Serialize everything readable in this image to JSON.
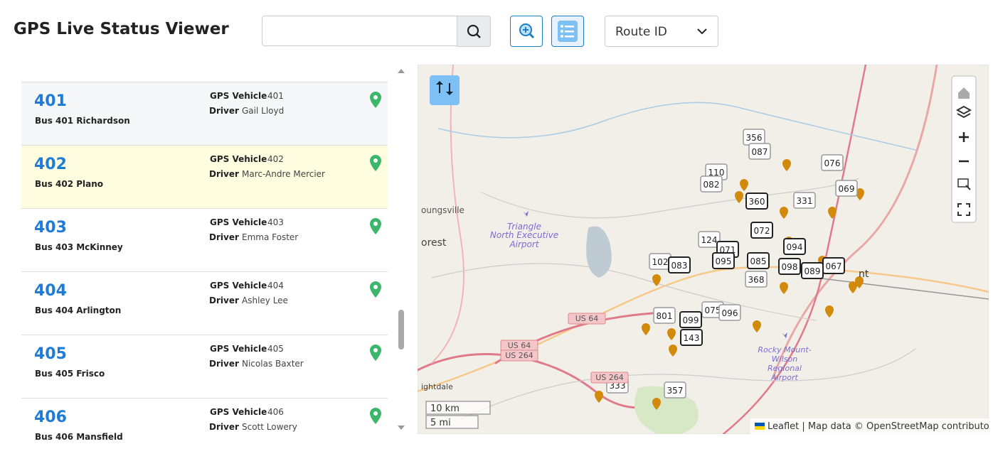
{
  "header": {
    "title": "GPS Live Status Viewer",
    "dropdown": "Route ID"
  },
  "list": {
    "items": [
      {
        "route": "401",
        "name": "Bus 401 Richardson",
        "gps_label": "GPS Vehicle",
        "gps": "401",
        "driver_label": "Driver",
        "driver": "Gail Lloyd"
      },
      {
        "route": "402",
        "name": "Bus 402 Plano",
        "gps_label": "GPS Vehicle",
        "gps": "402",
        "driver_label": "Driver",
        "driver": "Marc-Andre Mercier"
      },
      {
        "route": "403",
        "name": "Bus 403 McKinney",
        "gps_label": "GPS Vehicle",
        "gps": "403",
        "driver_label": "Driver",
        "driver": "Emma Foster"
      },
      {
        "route": "404",
        "name": "Bus 404 Arlington",
        "gps_label": "GPS Vehicle",
        "gps": "404",
        "driver_label": "Driver",
        "driver": "Ashley Lee"
      },
      {
        "route": "405",
        "name": "Bus 405 Frisco",
        "gps_label": "GPS Vehicle",
        "gps": "405",
        "driver_label": "Driver",
        "driver": "Nicolas Baxter"
      },
      {
        "route": "406",
        "name": "Bus 406 Mansfield",
        "gps_label": "GPS Vehicle",
        "gps": "406",
        "driver_label": "Driver",
        "driver": "Scott Lowery"
      }
    ]
  },
  "map": {
    "markers": [
      "356",
      "087",
      "076",
      "110",
      "082",
      "069",
      "360",
      "331",
      "072",
      "124",
      "071",
      "094",
      "095",
      "085",
      "102",
      "083",
      "098",
      "089",
      "067",
      "368",
      "075",
      "096",
      "801",
      "099",
      "143",
      "333",
      "357"
    ],
    "places": [
      "oungsville",
      "orest",
      "Triangle",
      "North Executive",
      "Airport",
      "Rocky Mount-",
      "Wilson",
      "Regional",
      "Airport",
      "ightdale",
      "nt"
    ],
    "roads": [
      "US 64",
      "US 64",
      "US 264",
      "US 264"
    ],
    "scale": [
      "10 km",
      "5 mi"
    ],
    "attribution": "Leaflet | Map data © OpenStreetMap contributors"
  }
}
